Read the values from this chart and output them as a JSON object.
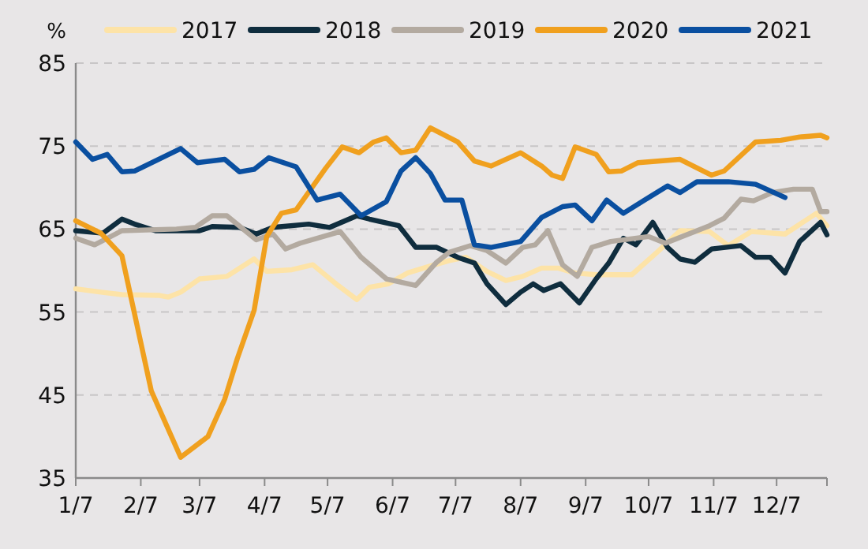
{
  "chart_data": {
    "type": "line",
    "ylabel": "%",
    "xlim": [
      "--01-07",
      "--12-31"
    ],
    "ylim": [
      35,
      85
    ],
    "yticks": [
      35,
      45,
      55,
      65,
      75,
      85
    ],
    "xticks": [
      {
        "value": "--01-07",
        "label": "1/7"
      },
      {
        "value": "--02-07",
        "label": "2/7"
      },
      {
        "value": "--03-07",
        "label": "3/7"
      },
      {
        "value": "--04-07",
        "label": "4/7"
      },
      {
        "value": "--05-07",
        "label": "5/7"
      },
      {
        "value": "--06-07",
        "label": "6/7"
      },
      {
        "value": "--07-07",
        "label": "7/7"
      },
      {
        "value": "--08-07",
        "label": "8/7"
      },
      {
        "value": "--09-07",
        "label": "9/7"
      },
      {
        "value": "--10-07",
        "label": "10/7"
      },
      {
        "value": "--11-07",
        "label": "11/7"
      },
      {
        "value": "--12-07",
        "label": "12/7"
      },
      {
        "value": "--12-31",
        "label": null
      }
    ],
    "grid": "y",
    "legend": "top",
    "line_style": "solid",
    "marker": "none",
    "series": [
      {
        "name": "2017",
        "color": "#fde3a7",
        "x": [
          "--01-07",
          "--01-19",
          "--01-29",
          "--02-16",
          "--02-20",
          "--02-26",
          "--03-07",
          "--03-20",
          "--04-02",
          "--04-08",
          "--04-20",
          "--04-30",
          "--05-12",
          "--05-21",
          "--05-27",
          "--06-05",
          "--06-14",
          "--06-27",
          "--07-04",
          "--07-12",
          "--07-22",
          "--07-31",
          "--08-08",
          "--08-17",
          "--08-25",
          "--09-02",
          "--09-12",
          "--09-29",
          "--10-11",
          "--10-22",
          "--11-05",
          "--11-14",
          "--11-25",
          "--12-11",
          "--12-26",
          "--12-31"
        ],
        "values": [
          57.8,
          57.4,
          57.1,
          57,
          56.8,
          57.4,
          59,
          59.3,
          61.4,
          59.9,
          60.1,
          60.7,
          58.2,
          56.5,
          58,
          58.4,
          59.7,
          60.7,
          61.2,
          61.6,
          59.9,
          58.8,
          59.3,
          60.3,
          60.3,
          59.7,
          59.5,
          59.5,
          62.2,
          64.8,
          64.7,
          63,
          64.7,
          64.4,
          66.9,
          65.4
        ]
      },
      {
        "name": "2018",
        "color": "#0f2d3e",
        "x": [
          "--01-07",
          "--01-20",
          "--01-29",
          "--02-04",
          "--02-14",
          "--03-07",
          "--03-13",
          "--03-26",
          "--04-03",
          "--04-11",
          "--04-28",
          "--05-08",
          "--05-21",
          "--05-27",
          "--06-10",
          "--06-18",
          "--06-28",
          "--07-08",
          "--07-16",
          "--07-22",
          "--07-31",
          "--08-07",
          "--08-13",
          "--08-18",
          "--08-26",
          "--09-04",
          "--09-12",
          "--09-18",
          "--09-25",
          "--10-01",
          "--10-09",
          "--10-16",
          "--10-22",
          "--10-29",
          "--11-06",
          "--11-20",
          "--11-27",
          "--12-04",
          "--12-11",
          "--12-18",
          "--12-28",
          "--12-31"
        ],
        "values": [
          64.8,
          64.5,
          66.2,
          65.6,
          64.8,
          64.8,
          65.3,
          65.2,
          64.4,
          65.2,
          65.6,
          65.2,
          66.6,
          66.2,
          65.4,
          62.8,
          62.8,
          61.6,
          60.9,
          58.4,
          55.9,
          57.4,
          58.4,
          57.6,
          58.4,
          56.1,
          59,
          60.9,
          63.9,
          63.1,
          65.8,
          62.8,
          61.4,
          61,
          62.6,
          63,
          61.6,
          61.6,
          59.7,
          63.5,
          65.8,
          64.3
        ]
      },
      {
        "name": "2019",
        "color": "#b3aaa0",
        "x": [
          "--01-07",
          "--01-16",
          "--01-29",
          "--02-24",
          "--03-05",
          "--03-13",
          "--03-20",
          "--04-03",
          "--04-11",
          "--04-17",
          "--04-24",
          "--05-13",
          "--05-23",
          "--06-04",
          "--06-18",
          "--06-28",
          "--07-04",
          "--07-14",
          "--07-22",
          "--07-31",
          "--08-08",
          "--08-14",
          "--08-20",
          "--08-27",
          "--09-03",
          "--09-10",
          "--09-19",
          "--10-07",
          "--10-15",
          "--11-05",
          "--11-12",
          "--11-20",
          "--11-26",
          "--12-05",
          "--12-15",
          "--12-24",
          "--12-28",
          "--12-31"
        ],
        "values": [
          63.9,
          63.1,
          64.8,
          65,
          65.2,
          66.6,
          66.6,
          63.7,
          64.4,
          62.6,
          63.3,
          64.7,
          61.6,
          59,
          58.2,
          61,
          62.2,
          63,
          62.4,
          60.9,
          62.8,
          63.1,
          64.8,
          60.7,
          59.3,
          62.8,
          63.5,
          64.1,
          63.3,
          65.4,
          66.3,
          68.6,
          68.4,
          69.4,
          69.8,
          69.8,
          67.1,
          67.1
        ]
      },
      {
        "name": "2020",
        "color": "#f0a01e",
        "x": [
          "--01-07",
          "--01-19",
          "--01-29",
          "--02-12",
          "--02-26",
          "--03-11",
          "--03-19",
          "--03-25",
          "--04-02",
          "--04-08",
          "--04-15",
          "--04-22",
          "--05-06",
          "--05-14",
          "--05-22",
          "--05-29",
          "--06-04",
          "--06-11",
          "--06-18",
          "--06-25",
          "--07-08",
          "--07-16",
          "--07-24",
          "--08-07",
          "--08-17",
          "--08-22",
          "--08-27",
          "--09-02",
          "--09-12",
          "--09-18",
          "--09-24",
          "--10-02",
          "--10-22",
          "--11-06",
          "--11-12",
          "--11-27",
          "--12-09",
          "--12-18",
          "--12-28",
          "--12-31"
        ],
        "values": [
          66,
          64.5,
          61.8,
          45.5,
          37.5,
          40,
          44.5,
          49.4,
          55.2,
          64.1,
          66.9,
          67.3,
          72.3,
          74.9,
          74.2,
          75.5,
          76,
          74.2,
          74.5,
          77.2,
          75.5,
          73.2,
          72.6,
          74.2,
          72.6,
          71.5,
          71.1,
          74.9,
          74,
          71.9,
          72,
          73,
          73.4,
          71.5,
          72,
          75.5,
          75.7,
          76.1,
          76.3,
          76
        ]
      },
      {
        "name": "2021",
        "color": "#0a4fa0",
        "x": [
          "--01-07",
          "--01-15",
          "--01-22",
          "--01-29",
          "--02-04",
          "--02-26",
          "--03-06",
          "--03-19",
          "--03-26",
          "--04-02",
          "--04-09",
          "--04-22",
          "--05-02",
          "--05-13",
          "--05-23",
          "--06-04",
          "--06-11",
          "--06-18",
          "--06-25",
          "--07-02",
          "--07-10",
          "--07-16",
          "--07-24",
          "--08-07",
          "--08-17",
          "--08-27",
          "--09-02",
          "--09-10",
          "--09-17",
          "--09-25",
          "--10-07",
          "--10-16",
          "--10-22",
          "--10-30",
          "--11-14",
          "--11-27",
          "--12-11"
        ],
        "values": [
          75.5,
          73.4,
          74,
          71.9,
          72,
          74.7,
          73,
          73.4,
          71.9,
          72.2,
          73.6,
          72.5,
          68.5,
          69.2,
          66.6,
          68.3,
          72,
          73.6,
          71.7,
          68.5,
          68.5,
          63.1,
          62.8,
          63.5,
          66.4,
          67.7,
          67.9,
          66,
          68.5,
          66.9,
          68.8,
          70.2,
          69.4,
          70.7,
          70.7,
          70.4,
          68.8
        ]
      }
    ]
  }
}
